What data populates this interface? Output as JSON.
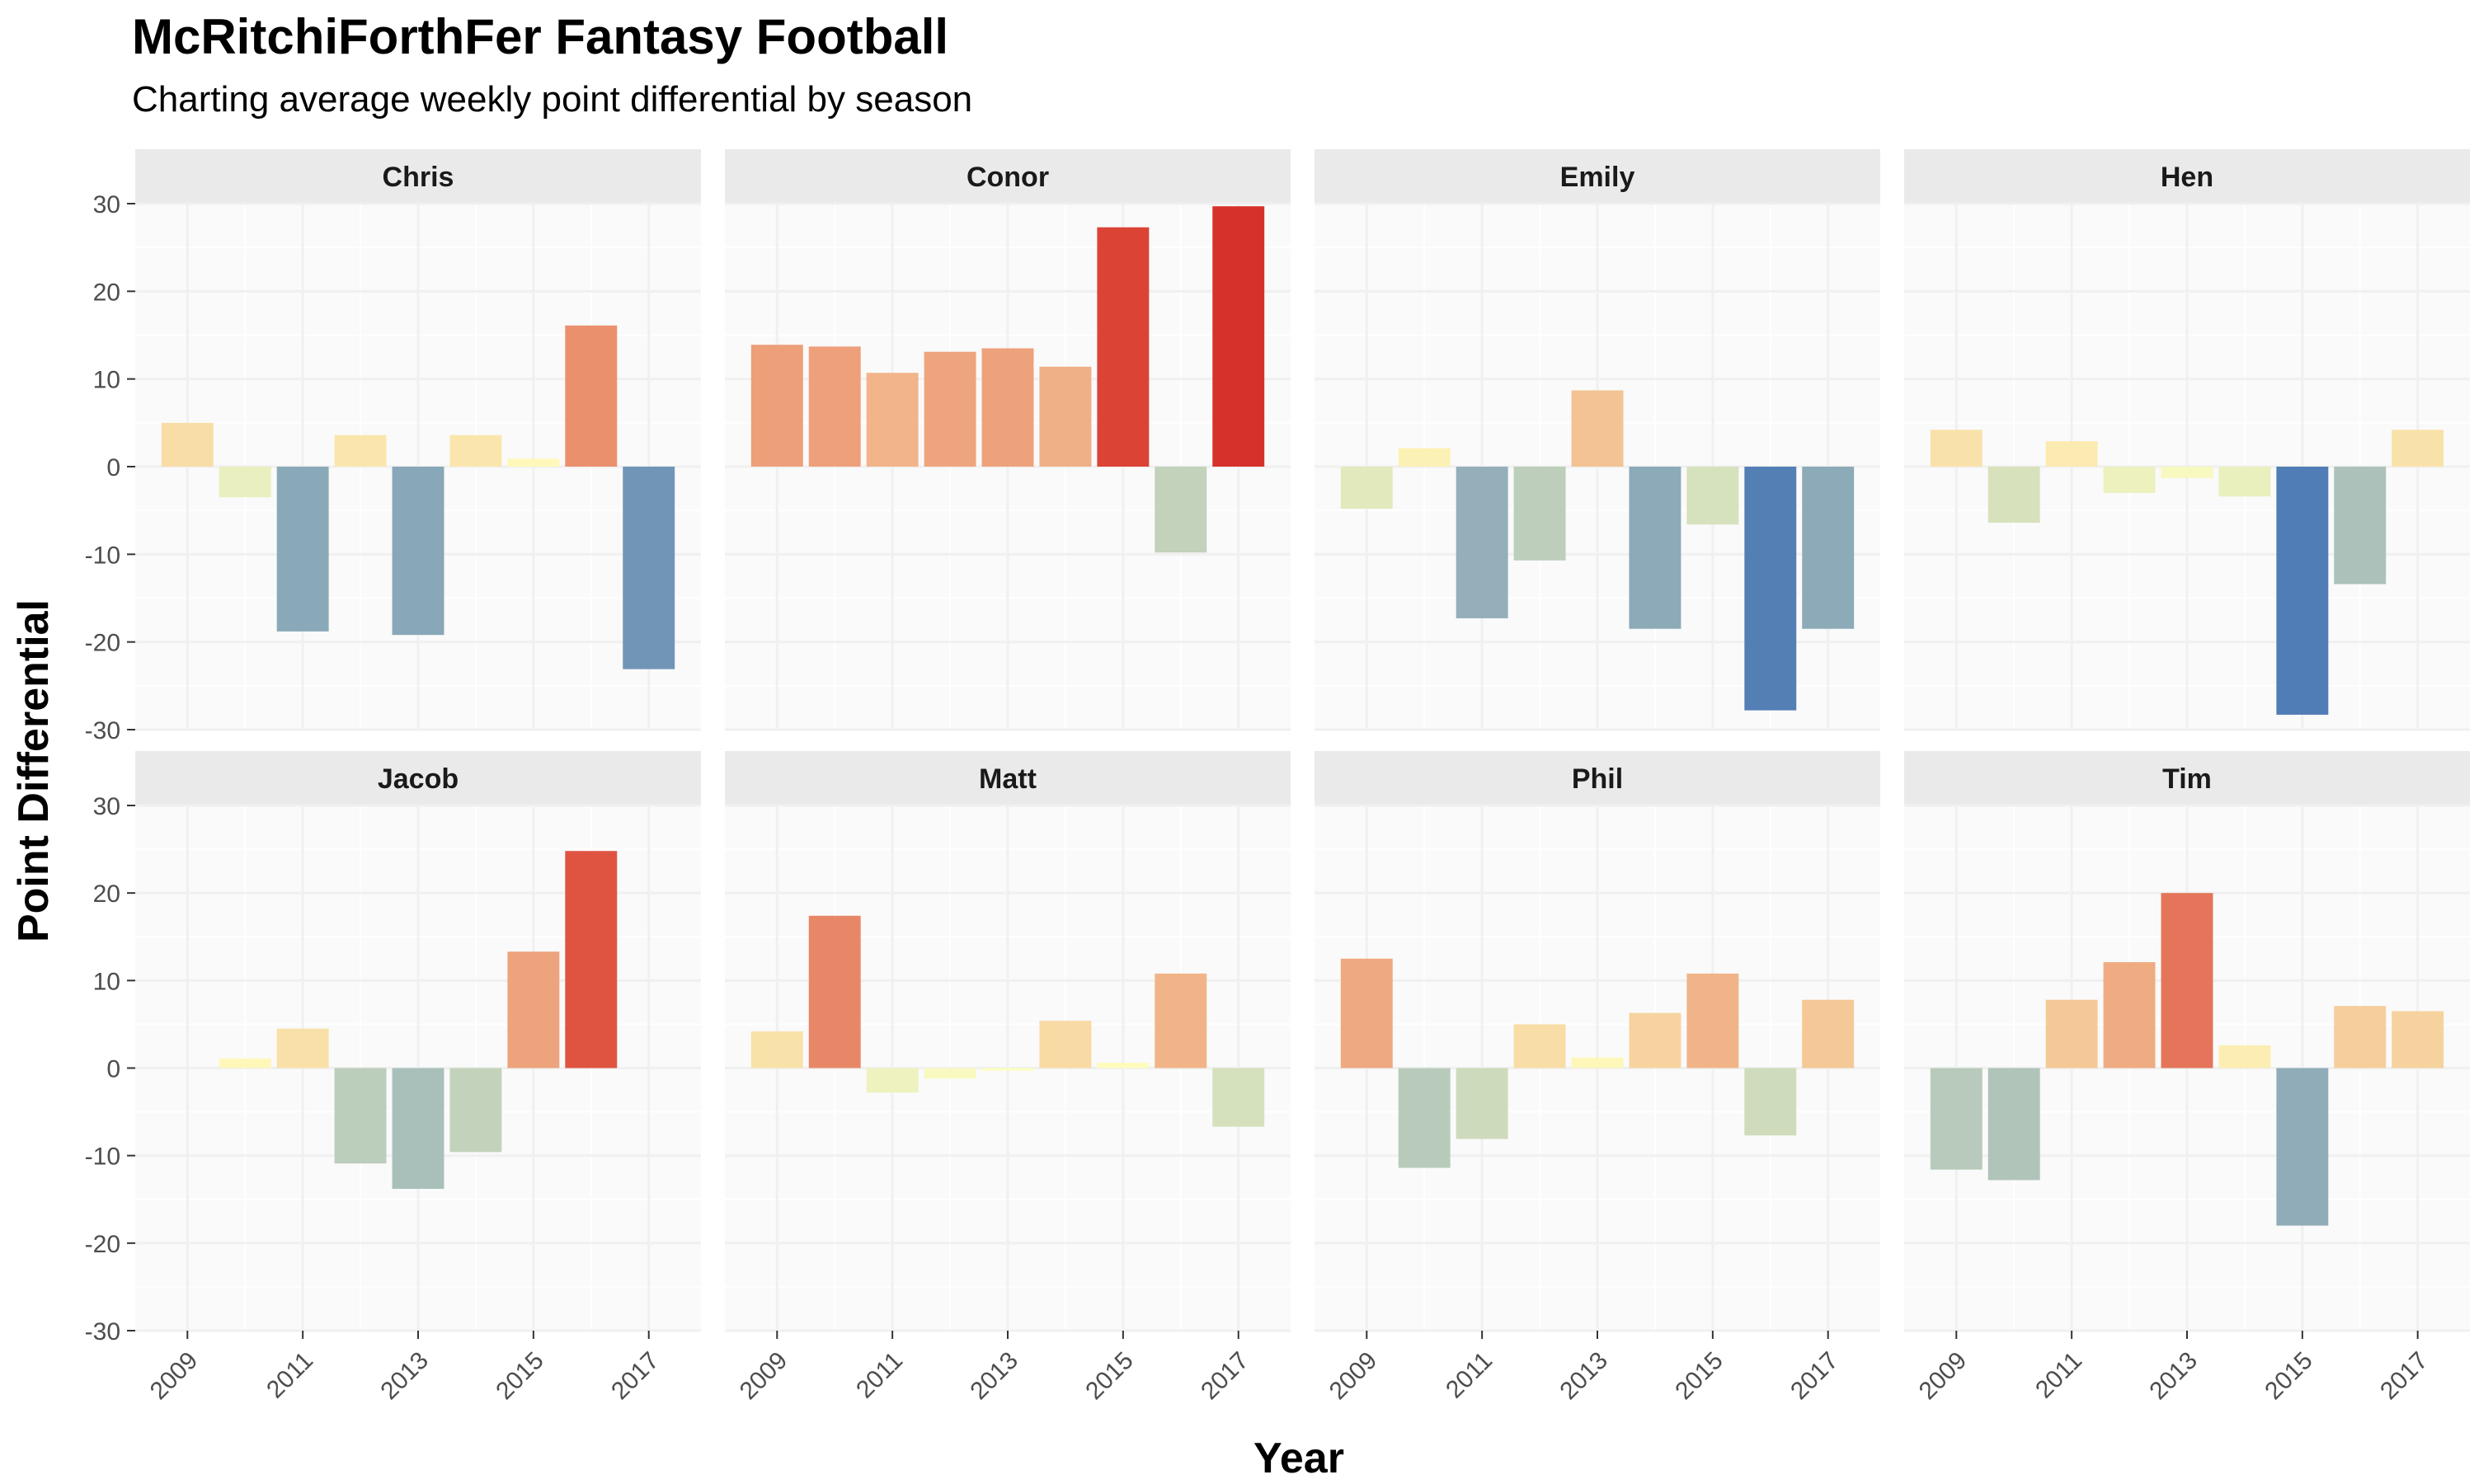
{
  "chart_data": {
    "type": "bar",
    "title": "McRitchiForthFer Fantasy Football",
    "subtitle": "Charting average weekly point differential by season",
    "xlabel": "Year",
    "ylabel": "Point Differential",
    "ylim": [
      -30,
      30
    ],
    "y_ticks": [
      "30",
      "20",
      "10",
      "0",
      "-10",
      "-20",
      "-30"
    ],
    "x_ticks": [
      "2009",
      "2011",
      "2013",
      "2015",
      "2017"
    ],
    "years": [
      2009,
      2010,
      2011,
      2012,
      2013,
      2014,
      2015,
      2016,
      2017
    ],
    "color_scale": {
      "low": "#4575b4",
      "mid": "#ffffbf",
      "high": "#d73027",
      "limit": 30
    },
    "series": [
      {
        "name": "Chris",
        "values": [
          5,
          -3.5,
          -18.8,
          3.6,
          -19.2,
          3.6,
          0.9,
          16.1,
          -23.1
        ]
      },
      {
        "name": "Conor",
        "values": [
          13.9,
          13.7,
          10.7,
          13.1,
          13.5,
          11.4,
          27.3,
          -9.8,
          29.7
        ]
      },
      {
        "name": "Emily",
        "values": [
          -4.8,
          2.1,
          -17.3,
          -10.7,
          8.7,
          -18.5,
          -6.6,
          -27.8,
          -18.5
        ]
      },
      {
        "name": "Hen",
        "values": [
          4.2,
          -6.4,
          2.9,
          -3.0,
          -1.3,
          -3.4,
          -28.3,
          -13.4,
          4.2
        ]
      },
      {
        "name": "Jacob",
        "values": [
          0,
          1.1,
          4.5,
          -10.9,
          -13.8,
          -9.6,
          13.3,
          24.8,
          0
        ]
      },
      {
        "name": "Matt",
        "values": [
          4.2,
          17.4,
          -2.8,
          -1.2,
          -0.3,
          5.4,
          0.6,
          10.8,
          -6.7
        ]
      },
      {
        "name": "Phil",
        "values": [
          12.5,
          -11.4,
          -8.1,
          5.0,
          1.2,
          6.3,
          10.8,
          -7.7,
          7.8
        ]
      },
      {
        "name": "Tim",
        "values": [
          -11.6,
          -12.8,
          7.8,
          12.1,
          20.0,
          2.6,
          -18.0,
          7.1,
          6.5
        ]
      }
    ],
    "legend": "none"
  }
}
